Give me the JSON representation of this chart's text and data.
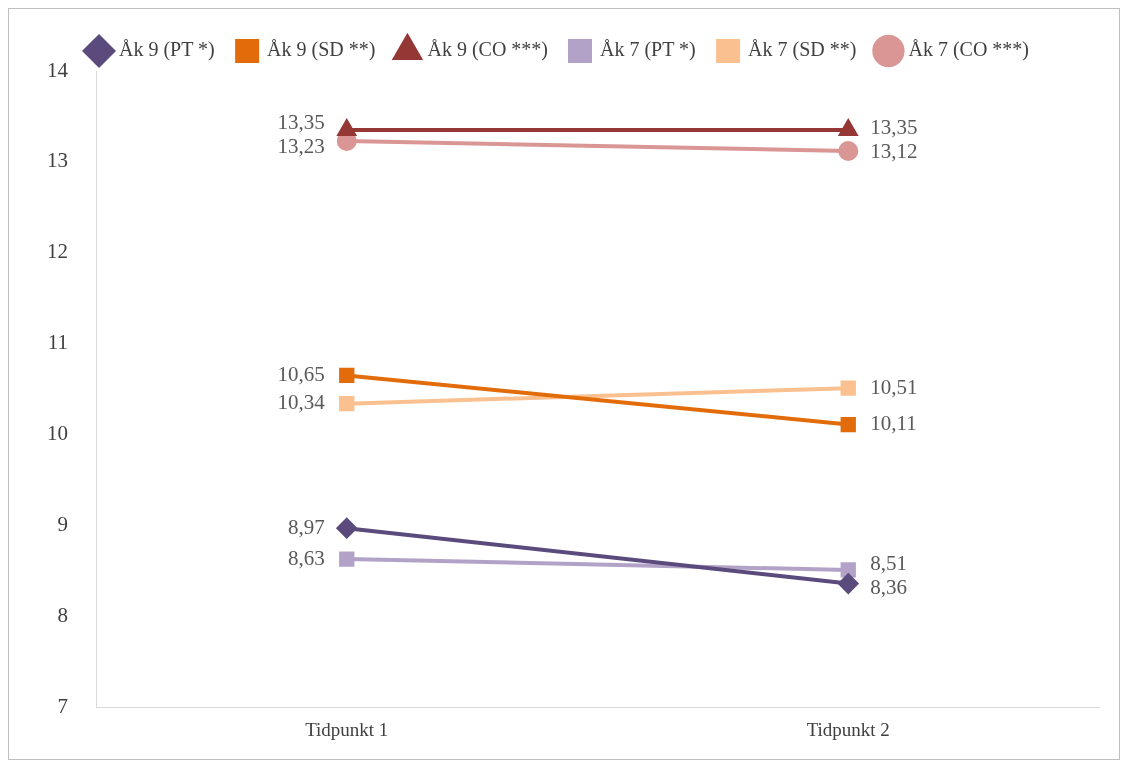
{
  "chart_data": {
    "type": "line",
    "categories": [
      "Tidpunkt 1",
      "Tidpunkt 2"
    ],
    "series": [
      {
        "name": "Åk 9 (PT *)",
        "color": "#5b4a7c",
        "marker": "diamond",
        "values": [
          8.97,
          8.36
        ],
        "value_labels": [
          "8,97",
          "8,36"
        ]
      },
      {
        "name": "Åk 9 (SD **)",
        "color": "#e36c0a",
        "marker": "square",
        "values": [
          10.65,
          10.11
        ],
        "value_labels": [
          "10,65",
          "10,11"
        ]
      },
      {
        "name": "Åk 9 (CO ***)",
        "color": "#953735",
        "marker": "triangle",
        "values": [
          13.35,
          13.35
        ],
        "value_labels": [
          "13,35",
          "13,35"
        ]
      },
      {
        "name": "Åk 7 (PT *)",
        "color": "#b3a2c7",
        "marker": "square",
        "values": [
          8.63,
          8.51
        ],
        "value_labels": [
          "8,63",
          "8,51"
        ]
      },
      {
        "name": "Åk 7 (SD **)",
        "color": "#fac090",
        "marker": "square",
        "values": [
          10.34,
          10.51
        ],
        "value_labels": [
          "10,34",
          "10,51"
        ]
      },
      {
        "name": "Åk 7 (CO ***)",
        "color": "#d99694",
        "marker": "circle",
        "values": [
          13.23,
          13.12
        ],
        "value_labels": [
          "13,23",
          "13,12"
        ]
      }
    ],
    "ylim": [
      7,
      14
    ],
    "yticks": [
      7,
      8,
      9,
      10,
      11,
      12,
      13,
      14
    ],
    "grid": false,
    "legend": "top",
    "line_style": "solid"
  }
}
